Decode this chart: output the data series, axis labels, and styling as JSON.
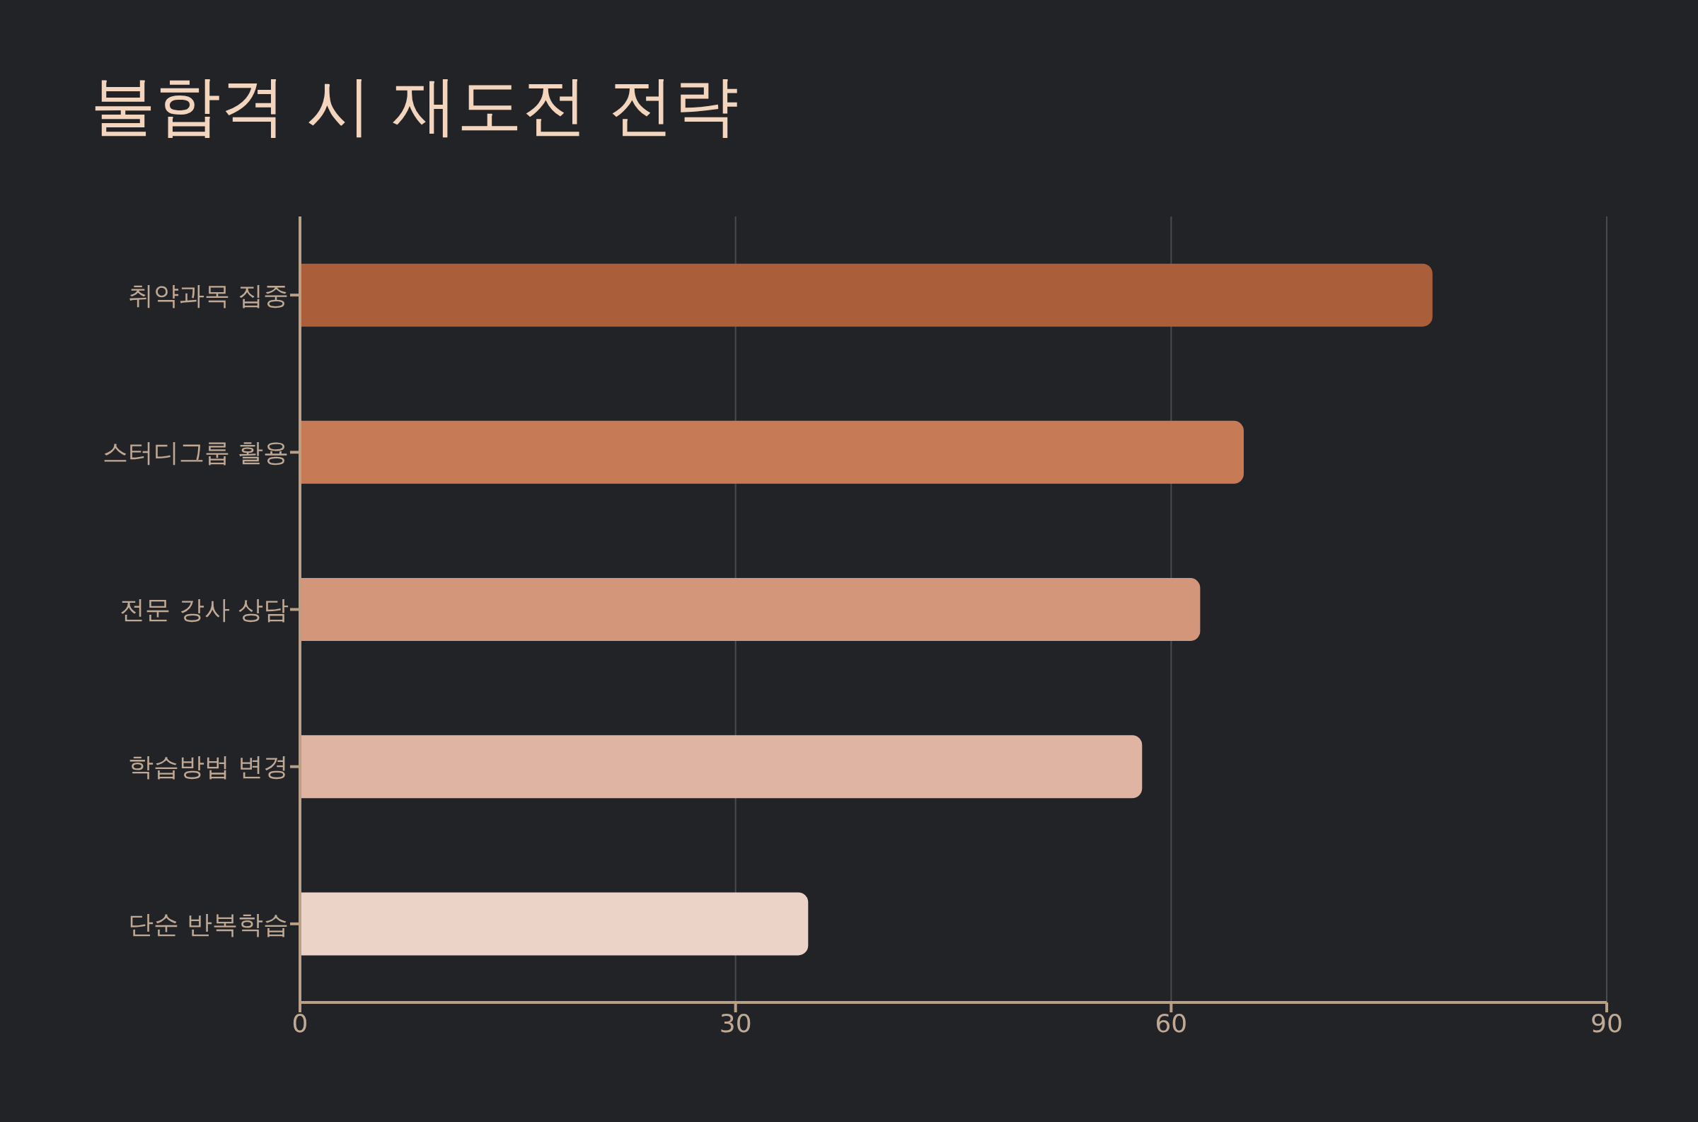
{
  "chart_data": {
    "type": "bar",
    "orientation": "horizontal",
    "title": "불합격 시 재도전 전략",
    "categories": [
      "취약과목 집중",
      "스터디그룹 활용",
      "전문 강사 상담",
      "학습방법 변경",
      "단순 반복학습"
    ],
    "values": [
      78,
      65,
      62,
      58,
      35
    ],
    "colors": [
      "#ab5e3a",
      "#c77a56",
      "#d4967a",
      "#e0b4a2",
      "#ecd3c7"
    ],
    "xlim": [
      0,
      90
    ],
    "xticks": [
      0,
      30,
      60,
      90
    ],
    "grid": "x"
  }
}
